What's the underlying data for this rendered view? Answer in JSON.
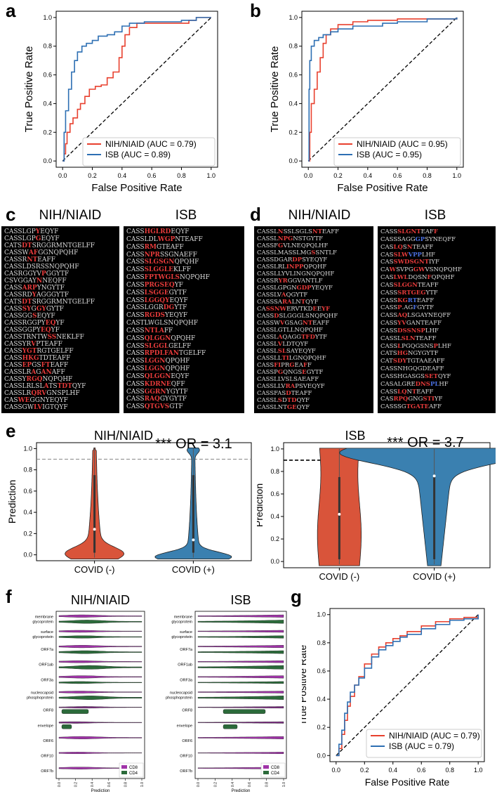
{
  "panels": {
    "a": "a",
    "b": "b",
    "c": "c",
    "d": "d",
    "e": "e",
    "f": "f",
    "g": "g"
  },
  "colors": {
    "red": "#e8402e",
    "blue": "#2d6fb3",
    "violinRed": "#d9543a",
    "violinBlue": "#3a80b0",
    "purple": "#a033a8",
    "green": "#2b6a3a"
  },
  "chart_data": [
    {
      "id": "a",
      "type": "line",
      "xlabel": "False Positive Rate",
      "ylabel": "True Positive Rate",
      "xlim": [
        0,
        1
      ],
      "ylim": [
        0,
        1
      ],
      "ticks": [
        "0.0",
        "0.2",
        "0.4",
        "0.6",
        "0.8",
        "1.0"
      ],
      "series": [
        {
          "name": "NIH/NIAID (AUC = 0.79)",
          "color": "#e8402e",
          "points": [
            [
              0,
              0
            ],
            [
              0.01,
              0.05
            ],
            [
              0.02,
              0.12
            ],
            [
              0.03,
              0.2
            ],
            [
              0.05,
              0.26
            ],
            [
              0.07,
              0.3
            ],
            [
              0.1,
              0.36
            ],
            [
              0.12,
              0.4
            ],
            [
              0.15,
              0.45
            ],
            [
              0.18,
              0.5
            ],
            [
              0.22,
              0.52
            ],
            [
              0.26,
              0.53
            ],
            [
              0.3,
              0.58
            ],
            [
              0.34,
              0.62
            ],
            [
              0.38,
              0.72
            ],
            [
              0.4,
              0.8
            ],
            [
              0.42,
              0.88
            ],
            [
              0.45,
              0.93
            ],
            [
              0.5,
              0.96
            ],
            [
              0.6,
              0.96
            ],
            [
              0.8,
              0.96
            ],
            [
              0.85,
              0.98
            ],
            [
              0.9,
              1.0
            ],
            [
              1.0,
              1.0
            ]
          ]
        },
        {
          "name": "ISB (AUC = 0.89)",
          "color": "#2d6fb3",
          "points": [
            [
              0,
              0
            ],
            [
              0.01,
              0.2
            ],
            [
              0.02,
              0.35
            ],
            [
              0.04,
              0.5
            ],
            [
              0.06,
              0.62
            ],
            [
              0.08,
              0.7
            ],
            [
              0.1,
              0.76
            ],
            [
              0.13,
              0.8
            ],
            [
              0.16,
              0.82
            ],
            [
              0.2,
              0.84
            ],
            [
              0.24,
              0.87
            ],
            [
              0.3,
              0.88
            ],
            [
              0.35,
              0.9
            ],
            [
              0.4,
              0.94
            ],
            [
              0.45,
              0.96
            ],
            [
              0.55,
              0.97
            ],
            [
              0.8,
              0.98
            ],
            [
              0.9,
              1.0
            ],
            [
              1.0,
              1.0
            ]
          ]
        }
      ]
    },
    {
      "id": "b",
      "type": "line",
      "xlabel": "False Positive Rate",
      "ylabel": "True Positive Rate",
      "xlim": [
        0,
        1
      ],
      "ylim": [
        0,
        1
      ],
      "ticks": [
        "0.0",
        "0.2",
        "0.4",
        "0.6",
        "0.8",
        "1.0"
      ],
      "series": [
        {
          "name": "NIH/NIAID (AUC = 0.95)",
          "color": "#e8402e",
          "points": [
            [
              0,
              0
            ],
            [
              0.01,
              0.2
            ],
            [
              0.02,
              0.4
            ],
            [
              0.04,
              0.5
            ],
            [
              0.06,
              0.62
            ],
            [
              0.08,
              0.72
            ],
            [
              0.1,
              0.82
            ],
            [
              0.12,
              0.88
            ],
            [
              0.15,
              0.92
            ],
            [
              0.2,
              0.95
            ],
            [
              0.3,
              0.97
            ],
            [
              0.4,
              0.98
            ],
            [
              0.6,
              0.99
            ],
            [
              1.0,
              1.0
            ]
          ]
        },
        {
          "name": "ISB (AUC = 0.95)",
          "color": "#2d6fb3",
          "points": [
            [
              0,
              0
            ],
            [
              0.005,
              0.5
            ],
            [
              0.01,
              0.7
            ],
            [
              0.02,
              0.8
            ],
            [
              0.04,
              0.84
            ],
            [
              0.07,
              0.86
            ],
            [
              0.1,
              0.88
            ],
            [
              0.15,
              0.9
            ],
            [
              0.2,
              0.92
            ],
            [
              0.3,
              0.94
            ],
            [
              0.4,
              0.94
            ],
            [
              0.5,
              0.96
            ],
            [
              0.6,
              0.97
            ],
            [
              0.8,
              0.99
            ],
            [
              1.0,
              1.0
            ]
          ]
        }
      ]
    },
    {
      "id": "g",
      "type": "line",
      "xlabel": "False Positive Rate",
      "ylabel": "True Positive Rate",
      "xlim": [
        0,
        1
      ],
      "ylim": [
        0,
        1
      ],
      "ticks": [
        "0.0",
        "0.2",
        "0.4",
        "0.6",
        "0.8",
        "1.0"
      ],
      "series": [
        {
          "name": "NIH/NIAID (AUC = 0.79)",
          "color": "#e8402e",
          "points": [
            [
              0,
              0
            ],
            [
              0.02,
              0.05
            ],
            [
              0.04,
              0.15
            ],
            [
              0.06,
              0.25
            ],
            [
              0.08,
              0.35
            ],
            [
              0.1,
              0.42
            ],
            [
              0.13,
              0.5
            ],
            [
              0.16,
              0.56
            ],
            [
              0.2,
              0.65
            ],
            [
              0.25,
              0.72
            ],
            [
              0.3,
              0.77
            ],
            [
              0.35,
              0.8
            ],
            [
              0.4,
              0.83
            ],
            [
              0.45,
              0.85
            ],
            [
              0.5,
              0.88
            ],
            [
              0.6,
              0.92
            ],
            [
              0.7,
              0.95
            ],
            [
              0.8,
              0.97
            ],
            [
              0.9,
              0.98
            ],
            [
              1.0,
              1.0
            ]
          ]
        },
        {
          "name": "ISB (AUC = 0.79)",
          "color": "#2d6fb3",
          "points": [
            [
              0,
              0
            ],
            [
              0.02,
              0.08
            ],
            [
              0.04,
              0.18
            ],
            [
              0.06,
              0.3
            ],
            [
              0.08,
              0.38
            ],
            [
              0.1,
              0.45
            ],
            [
              0.13,
              0.5
            ],
            [
              0.16,
              0.55
            ],
            [
              0.2,
              0.62
            ],
            [
              0.25,
              0.7
            ],
            [
              0.3,
              0.75
            ],
            [
              0.35,
              0.78
            ],
            [
              0.4,
              0.81
            ],
            [
              0.45,
              0.84
            ],
            [
              0.5,
              0.86
            ],
            [
              0.6,
              0.9
            ],
            [
              0.7,
              0.93
            ],
            [
              0.8,
              0.96
            ],
            [
              0.9,
              0.97
            ],
            [
              1.0,
              1.0
            ]
          ]
        }
      ]
    },
    {
      "id": "e1",
      "type": "violin",
      "title": "NIH/NIAID",
      "annotation": "*** OR = 3.1",
      "ylabel": "Prediction",
      "categories": [
        "COVID (-)",
        "COVID (+)"
      ],
      "yticks": [
        "0.0",
        "0.2",
        "0.4",
        "0.6",
        "0.8",
        "1.0"
      ],
      "threshold": 0.9,
      "medians": [
        0.24,
        0.14
      ]
    },
    {
      "id": "e2",
      "type": "violin",
      "title": "ISB",
      "annotation": "*** OR = 3.7",
      "ylabel": "Prediction",
      "categories": [
        "COVID (-)",
        "COVID (+)"
      ],
      "yticks": [
        "0.0",
        "0.2",
        "0.4",
        "0.6",
        "0.8",
        "1.0"
      ],
      "threshold": 0.9,
      "medians": [
        0.42,
        0.76
      ]
    },
    {
      "id": "f",
      "type": "violin",
      "titles": [
        "NIH/NIAID",
        "ISB"
      ],
      "categories": [
        "membrane glycoprotein",
        "surface glycoprotein",
        "ORF7a",
        "ORF1ab",
        "ORF3a",
        "nucleocapsid phosphoprotein",
        "ORF8",
        "envelope",
        "ORF6",
        "ORF10",
        "ORF7b"
      ],
      "xlabel": "Prediction",
      "xticks": [
        "0.0",
        "0.2",
        "0.4",
        "0.6",
        "0.8",
        "1.0"
      ],
      "legend": [
        "CD8",
        "CD4"
      ]
    }
  ],
  "logos": {
    "c": {
      "left_title": "NIH/NIAID",
      "right_title": "ISB"
    },
    "d": {
      "left_title": "NIH/NIAID",
      "right_title": "ISB"
    }
  }
}
